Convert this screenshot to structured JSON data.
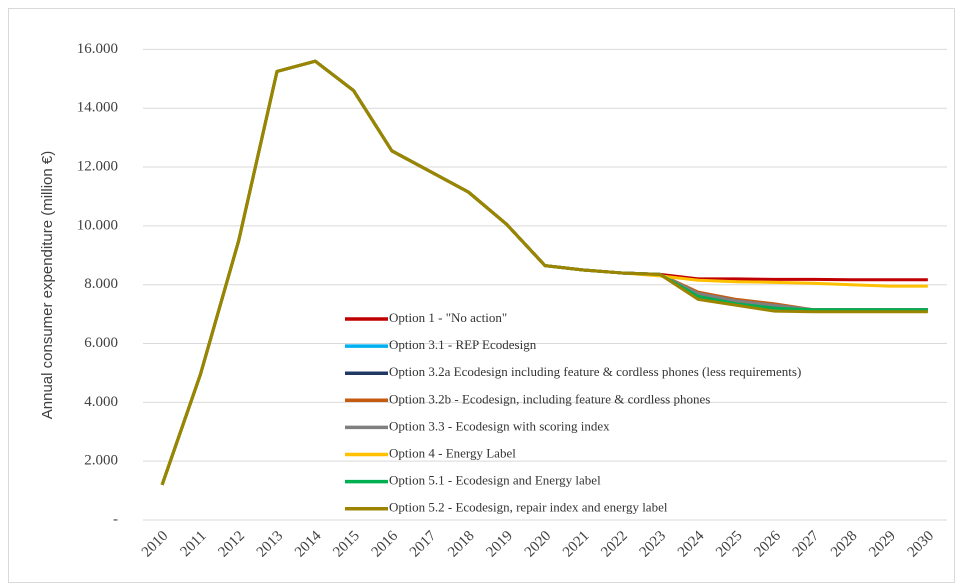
{
  "chart_data": {
    "type": "line",
    "y_label": "Annual consumer expenditure (million €)",
    "categories": [
      "2010",
      "2011",
      "2012",
      "2013",
      "2014",
      "2015",
      "2016",
      "2017",
      "2018",
      "2019",
      "2020",
      "2021",
      "2022",
      "2023",
      "2024",
      "2025",
      "2026",
      "2027",
      "2028",
      "2029",
      "2030"
    ],
    "series": [
      {
        "name": "Option 1 - \"No action\"",
        "color": "#c00000",
        "values": [
          1200,
          4950,
          9500,
          15250,
          15600,
          14600,
          12550,
          11850,
          11150,
          10050,
          8650,
          8500,
          8400,
          8350,
          8200,
          8200,
          8180,
          8180,
          8170,
          8170,
          8170
        ]
      },
      {
        "name": "Option 3.1 - REP Ecodesign",
        "color": "#00b0f0",
        "values": [
          1200,
          4950,
          9500,
          15250,
          15600,
          14600,
          12550,
          11850,
          11150,
          10050,
          8650,
          8500,
          8400,
          8350,
          7600,
          7400,
          7250,
          7150,
          7150,
          7150,
          7150
        ]
      },
      {
        "name": "Option 3.2a Ecodesign including feature & cordless phones (less requirements)",
        "color": "#203864",
        "values": [
          1200,
          4950,
          9500,
          15250,
          15600,
          14600,
          12550,
          11850,
          11150,
          10050,
          8650,
          8500,
          8400,
          8350,
          7700,
          7450,
          7300,
          7150,
          7150,
          7150,
          7150
        ]
      },
      {
        "name": "Option 3.2b -  Ecodesign, including feature & cordless phones",
        "color": "#c55a11",
        "values": [
          1200,
          4950,
          9500,
          15250,
          15600,
          14600,
          12550,
          11850,
          11150,
          10050,
          8650,
          8500,
          8400,
          8350,
          7750,
          7500,
          7350,
          7150,
          7150,
          7150,
          7150
        ]
      },
      {
        "name": "Option 3.3 - Ecodesign with scoring index",
        "color": "#7f7f7f",
        "values": [
          1200,
          4950,
          9500,
          15250,
          15600,
          14600,
          12550,
          11850,
          11150,
          10050,
          8650,
          8500,
          8400,
          8350,
          7700,
          7450,
          7300,
          7150,
          7150,
          7150,
          7150
        ]
      },
      {
        "name": "Option 4 - Energy Label",
        "color": "#ffc000",
        "values": [
          1200,
          4950,
          9500,
          15250,
          15600,
          14600,
          12550,
          11850,
          11150,
          10050,
          8650,
          8500,
          8400,
          8300,
          8150,
          8100,
          8080,
          8050,
          8000,
          7950,
          7950
        ]
      },
      {
        "name": "Option 5.1 - Ecodesign and Energy label",
        "color": "#00b050",
        "values": [
          1200,
          4950,
          9500,
          15250,
          15600,
          14600,
          12550,
          11850,
          11150,
          10050,
          8650,
          8500,
          8400,
          8350,
          7600,
          7350,
          7200,
          7150,
          7150,
          7150,
          7150
        ]
      },
      {
        "name": "Option 5.2 - Ecodesign, repair index and energy label",
        "color": "#9c8400",
        "values": [
          1200,
          4950,
          9500,
          15250,
          15600,
          14600,
          12550,
          11850,
          11150,
          10050,
          8650,
          8500,
          8400,
          8350,
          7500,
          7300,
          7100,
          7080,
          7080,
          7080,
          7080
        ]
      }
    ],
    "ylim": [
      0,
      17000
    ],
    "yticks": [
      {
        "value": 0,
        "label": "-"
      },
      {
        "value": 2000,
        "label": "2.000"
      },
      {
        "value": 4000,
        "label": "4.000"
      },
      {
        "value": 6000,
        "label": "6.000"
      },
      {
        "value": 8000,
        "label": "8.000"
      },
      {
        "value": 10000,
        "label": "10.000"
      },
      {
        "value": 12000,
        "label": "12.000"
      },
      {
        "value": 14000,
        "label": "14.000"
      },
      {
        "value": 16000,
        "label": "16.000"
      }
    ],
    "grid": true
  }
}
